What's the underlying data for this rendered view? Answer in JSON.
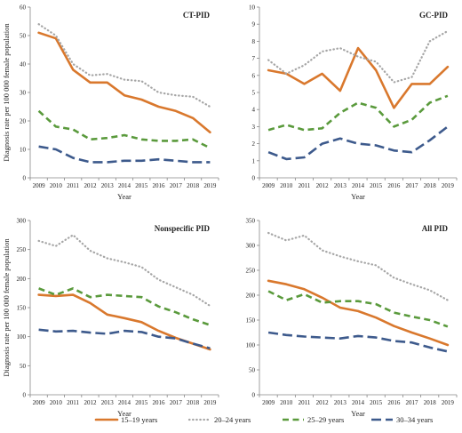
{
  "colors": {
    "s1": "#d9782d",
    "s2": "#a6a6a6",
    "s3": "#5a9a3c",
    "s4": "#3d5a8c"
  },
  "legend": [
    "15–19 years",
    "20–24 years",
    "25–29 years",
    "30–34 years"
  ],
  "chart_data": [
    {
      "type": "line",
      "title": "CT-PID",
      "xlabel": "Year",
      "ylabel": "Diagnosis rate per 100 000 female population",
      "x": [
        "2009",
        "2010",
        "2011",
        "2012",
        "2013",
        "2014",
        "2015",
        "2016",
        "2017",
        "2018",
        "2019"
      ],
      "ylim": [
        0,
        60
      ],
      "yticks": [
        0,
        10,
        20,
        30,
        40,
        50,
        60
      ],
      "series": [
        {
          "name": "15–19 years",
          "values": [
            51,
            49,
            38,
            33.5,
            33.5,
            29,
            27.5,
            25,
            23.5,
            21,
            16
          ]
        },
        {
          "name": "20–24 years",
          "values": [
            54,
            50,
            40,
            36,
            36.5,
            34.5,
            34,
            30,
            29,
            28.5,
            25
          ]
        },
        {
          "name": "25–29 years",
          "values": [
            23.5,
            18,
            17,
            13.5,
            14,
            15,
            13.5,
            13,
            13,
            13.5,
            10.5
          ]
        },
        {
          "name": "30–34 years",
          "values": [
            11,
            10,
            7,
            5.5,
            5.5,
            6,
            6,
            6.5,
            6,
            5.5,
            5.5
          ]
        }
      ]
    },
    {
      "type": "line",
      "title": "GC-PID",
      "xlabel": "Year",
      "ylabel": "",
      "x": [
        "2009",
        "2010",
        "2011",
        "2012",
        "2013",
        "2014",
        "2015",
        "2016",
        "2017",
        "2018",
        "2019"
      ],
      "ylim": [
        0,
        10
      ],
      "yticks": [
        0,
        1,
        2,
        3,
        4,
        5,
        6,
        7,
        8,
        9,
        10
      ],
      "series": [
        {
          "name": "15–19 years",
          "values": [
            6.3,
            6.1,
            5.5,
            6.1,
            5.1,
            7.6,
            6.3,
            4.1,
            5.5,
            5.5,
            6.5
          ]
        },
        {
          "name": "20–24 years",
          "values": [
            6.9,
            6.1,
            6.6,
            7.4,
            7.6,
            7.1,
            6.8,
            5.6,
            5.9,
            8.0,
            8.6
          ]
        },
        {
          "name": "25–29 years",
          "values": [
            2.8,
            3.1,
            2.8,
            2.9,
            3.8,
            4.4,
            4.1,
            3.0,
            3.4,
            4.4,
            4.8
          ]
        },
        {
          "name": "30–34 years",
          "values": [
            1.5,
            1.1,
            1.2,
            2.0,
            2.3,
            2.0,
            1.9,
            1.6,
            1.5,
            2.2,
            3.0
          ]
        }
      ]
    },
    {
      "type": "line",
      "title": "Nonspecific PID",
      "xlabel": "Year",
      "ylabel": "Diagnosis rate per 100 000 female population",
      "x": [
        "2009",
        "2010",
        "2011",
        "2012",
        "2013",
        "2014",
        "2015",
        "2016",
        "2017",
        "2018",
        "2019"
      ],
      "ylim": [
        0,
        300
      ],
      "yticks": [
        0,
        50,
        100,
        150,
        200,
        250,
        300
      ],
      "series": [
        {
          "name": "15–19 years",
          "values": [
            172,
            170,
            172,
            158,
            138,
            132,
            125,
            110,
            98,
            88,
            78
          ]
        },
        {
          "name": "20–24 years",
          "values": [
            265,
            256,
            275,
            248,
            235,
            228,
            220,
            198,
            185,
            172,
            153
          ]
        },
        {
          "name": "25–29 years",
          "values": [
            183,
            172,
            183,
            168,
            172,
            170,
            168,
            152,
            142,
            130,
            120
          ]
        },
        {
          "name": "30–34 years",
          "values": [
            112,
            109,
            110,
            107,
            105,
            110,
            108,
            100,
            97,
            88,
            80
          ]
        }
      ]
    },
    {
      "type": "line",
      "title": "All PID",
      "xlabel": "Year",
      "ylabel": "",
      "x": [
        "2009",
        "2010",
        "2011",
        "2012",
        "2013",
        "2014",
        "2015",
        "2016",
        "2017",
        "2018",
        "2019"
      ],
      "ylim": [
        0,
        350
      ],
      "yticks": [
        0,
        50,
        100,
        150,
        200,
        250,
        300,
        350
      ],
      "series": [
        {
          "name": "15–19 years",
          "values": [
            229,
            222,
            212,
            195,
            175,
            168,
            155,
            138,
            125,
            113,
            100
          ]
        },
        {
          "name": "20–24 years",
          "values": [
            325,
            310,
            320,
            290,
            278,
            268,
            260,
            235,
            222,
            210,
            190
          ]
        },
        {
          "name": "25–29 years",
          "values": [
            208,
            190,
            202,
            185,
            188,
            188,
            182,
            165,
            157,
            150,
            137
          ]
        },
        {
          "name": "30–34 years",
          "values": [
            125,
            120,
            117,
            115,
            113,
            118,
            115,
            108,
            105,
            95,
            87
          ]
        }
      ]
    }
  ]
}
